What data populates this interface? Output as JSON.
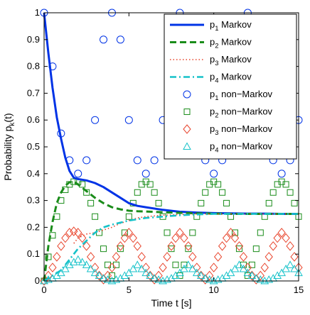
{
  "chart_data": {
    "type": "line",
    "xlabel": "Time t [s]",
    "ylabel_main": "Probability p",
    "ylabel_sub": "k",
    "ylabel_tail": "(t)",
    "xlim": [
      0,
      15
    ],
    "ylim": [
      0,
      1
    ],
    "xticks": [
      0,
      5,
      10,
      15
    ],
    "xtick_labels": [
      "0",
      "5",
      "10",
      "15"
    ],
    "yticks": [
      0,
      0.1,
      0.2,
      0.3,
      0.4,
      0.5,
      0.6,
      0.7,
      0.8,
      0.9,
      1
    ],
    "ytick_labels": [
      "0",
      "0.1",
      "0.2",
      "0.3",
      "0.4",
      "0.5",
      "0.6",
      "0.7",
      "0.8",
      "0.9",
      "1"
    ],
    "grid": false,
    "legend_position": "top-right",
    "legend": [
      {
        "pre": "p",
        "sub": "1",
        "post": " Markov",
        "color": "#0033e6",
        "style": "solid"
      },
      {
        "pre": "p",
        "sub": "2",
        "post": " Markov",
        "color": "#1a8c1a",
        "style": "dashed"
      },
      {
        "pre": "p",
        "sub": "3",
        "post": " Markov",
        "color": "#e8442c",
        "style": "dotted"
      },
      {
        "pre": "p",
        "sub": "4",
        "post": " Markov",
        "color": "#16c2c9",
        "style": "dashdot"
      },
      {
        "pre": "p",
        "sub": "1",
        "post": " non−Markov",
        "color": "#0033e6",
        "style": "circle"
      },
      {
        "pre": "p",
        "sub": "2",
        "post": " non−Markov",
        "color": "#1a8c1a",
        "style": "square"
      },
      {
        "pre": "p",
        "sub": "3",
        "post": " non−Markov",
        "color": "#e8442c",
        "style": "diamond"
      },
      {
        "pre": "p",
        "sub": "4",
        "post": " non−Markov",
        "color": "#16c2c9",
        "style": "triangle"
      }
    ],
    "series": [
      {
        "x": [
          0,
          0.25,
          0.5,
          0.75,
          1,
          1.25,
          1.5,
          1.75,
          2,
          2.5,
          3,
          3.5,
          4,
          4.5,
          5,
          5.5,
          6,
          7,
          8,
          9,
          10,
          11,
          12,
          13,
          14,
          15
        ],
        "y": [
          1,
          0.85,
          0.72,
          0.61,
          0.53,
          0.46,
          0.41,
          0.385,
          0.38,
          0.375,
          0.365,
          0.35,
          0.33,
          0.31,
          0.29,
          0.28,
          0.275,
          0.265,
          0.258,
          0.255,
          0.253,
          0.252,
          0.251,
          0.251,
          0.25,
          0.25
        ]
      },
      {
        "x": [
          0,
          0.25,
          0.5,
          0.75,
          1,
          1.25,
          1.5,
          1.75,
          2,
          2.5,
          3,
          3.5,
          4,
          4.5,
          5,
          5.5,
          6,
          7,
          8,
          9,
          10,
          11,
          12,
          13,
          14,
          15
        ],
        "y": [
          0,
          0.13,
          0.22,
          0.29,
          0.33,
          0.355,
          0.368,
          0.37,
          0.36,
          0.335,
          0.31,
          0.29,
          0.275,
          0.267,
          0.262,
          0.26,
          0.259,
          0.256,
          0.254,
          0.252,
          0.251,
          0.25,
          0.25,
          0.25,
          0.25,
          0.25
        ]
      },
      {
        "x": [
          1.75,
          2,
          2.5,
          3,
          3.5,
          4,
          4.5,
          5,
          5.5,
          6,
          7,
          8,
          9,
          10,
          11,
          12,
          13,
          14,
          15
        ],
        "y": [
          0.14,
          0.16,
          0.175,
          0.18,
          0.19,
          0.2,
          0.215,
          0.225,
          0.235,
          0.24,
          0.245,
          0.248,
          0.25,
          0.25,
          0.25,
          0.25,
          0.25,
          0.25,
          0.25
        ]
      },
      {
        "x": [
          0,
          1,
          2,
          3,
          3.5,
          4,
          5,
          6,
          7,
          8,
          9,
          10,
          11,
          12,
          13,
          14,
          15
        ],
        "y": [
          0,
          0.04,
          0.12,
          0.18,
          0.2,
          0.21,
          0.225,
          0.235,
          0.24,
          0.245,
          0.248,
          0.25,
          0.25,
          0.25,
          0.25,
          0.25,
          0.25
        ]
      }
    ],
    "scatter": [
      {
        "x": [
          0,
          0.5,
          1,
          1.5,
          2,
          2.5,
          3,
          3.5,
          4,
          4.5,
          5,
          5.5,
          6,
          6.5,
          7,
          7.5,
          8,
          8.5,
          9,
          9.5,
          10,
          10.5,
          11,
          11.5,
          12,
          12.5,
          13,
          13.5,
          14,
          14.5,
          15
        ],
        "y": [
          1,
          0.8,
          0.55,
          0.45,
          0.4,
          0.45,
          0.6,
          0.9,
          1,
          0.9,
          0.6,
          0.45,
          0.4,
          0.45,
          0.6,
          0.9,
          1,
          0.9,
          0.6,
          0.45,
          0.4,
          0.45,
          0.6,
          0.9,
          1,
          0.9,
          0.6,
          0.45,
          0.4,
          0.45,
          0.6
        ]
      },
      {
        "x": [
          0,
          0.25,
          0.5,
          0.75,
          1,
          1.25,
          1.5,
          1.75,
          2,
          2.25,
          2.5,
          2.75,
          3,
          3.25,
          3.5,
          3.75,
          4,
          4.25,
          4.5,
          4.75,
          5,
          5.25,
          5.5,
          5.75,
          6,
          6.25,
          6.5,
          6.75,
          7,
          7.25,
          7.5,
          7.75,
          8,
          8.25,
          8.5,
          8.75,
          9,
          9.25,
          9.5,
          9.75,
          10,
          10.25,
          10.5,
          10.75,
          11,
          11.25,
          11.5,
          11.75,
          12,
          12.25,
          12.5,
          12.75,
          13,
          13.25,
          13.5,
          13.75,
          14,
          14.25,
          14.5,
          14.75,
          15
        ],
        "y": [
          0,
          0.09,
          0.17,
          0.24,
          0.3,
          0.34,
          0.36,
          0.37,
          0.37,
          0.36,
          0.33,
          0.29,
          0.24,
          0.18,
          0.12,
          0.06,
          0.02,
          0.06,
          0.12,
          0.18,
          0.24,
          0.29,
          0.33,
          0.36,
          0.37,
          0.36,
          0.33,
          0.29,
          0.24,
          0.18,
          0.12,
          0.06,
          0.02,
          0.06,
          0.12,
          0.18,
          0.24,
          0.29,
          0.33,
          0.36,
          0.37,
          0.36,
          0.33,
          0.29,
          0.24,
          0.18,
          0.12,
          0.06,
          0.02,
          0.06,
          0.12,
          0.18,
          0.24,
          0.29,
          0.33,
          0.36,
          0.37,
          0.36,
          0.33,
          0.29,
          0.24
        ]
      },
      {
        "x": [
          0,
          0.25,
          0.5,
          0.75,
          1,
          1.25,
          1.5,
          1.75,
          2,
          2.25,
          2.5,
          2.75,
          3,
          3.25,
          3.5,
          3.75,
          4,
          4.25,
          4.5,
          4.75,
          5,
          5.25,
          5.5,
          5.75,
          6,
          6.25,
          6.5,
          6.75,
          7,
          7.25,
          7.5,
          7.75,
          8,
          8.25,
          8.5,
          8.75,
          9,
          9.25,
          9.5,
          9.75,
          10,
          10.25,
          10.5,
          10.75,
          11,
          11.25,
          11.5,
          11.75,
          12,
          12.25,
          12.5,
          12.75,
          13,
          13.25,
          13.5,
          13.75,
          14,
          14.25,
          14.5,
          14.75,
          15
        ],
        "y": [
          0,
          0.02,
          0.05,
          0.09,
          0.13,
          0.16,
          0.18,
          0.185,
          0.18,
          0.16,
          0.13,
          0.09,
          0.05,
          0.02,
          0.005,
          0.02,
          0.05,
          0.09,
          0.13,
          0.16,
          0.18,
          0.16,
          0.13,
          0.09,
          0.05,
          0.02,
          0.005,
          0.02,
          0.05,
          0.09,
          0.13,
          0.16,
          0.18,
          0.16,
          0.13,
          0.09,
          0.05,
          0.02,
          0.005,
          0.02,
          0.05,
          0.09,
          0.13,
          0.16,
          0.18,
          0.16,
          0.13,
          0.09,
          0.05,
          0.02,
          0.005,
          0.02,
          0.05,
          0.09,
          0.13,
          0.16,
          0.18,
          0.16,
          0.13,
          0.09,
          0.05
        ]
      },
      {
        "x": [
          0,
          0.25,
          0.5,
          0.75,
          1,
          1.25,
          1.5,
          1.75,
          2,
          2.25,
          2.5,
          2.75,
          3,
          3.25,
          3.5,
          3.75,
          4,
          4.25,
          4.5,
          4.75,
          5,
          5.25,
          5.5,
          5.75,
          6,
          6.25,
          6.5,
          6.75,
          7,
          7.25,
          7.5,
          7.75,
          8,
          8.25,
          8.5,
          8.75,
          9,
          9.25,
          9.5,
          9.75,
          10,
          10.25,
          10.5,
          10.75,
          11,
          11.25,
          11.5,
          11.75,
          12,
          12.25,
          12.5,
          12.75,
          13,
          13.25,
          13.5,
          13.75,
          14,
          14.25,
          14.5,
          14.75,
          15
        ],
        "y": [
          0,
          0.005,
          0.01,
          0.02,
          0.03,
          0.045,
          0.06,
          0.07,
          0.08,
          0.07,
          0.06,
          0.045,
          0.03,
          0.02,
          0.01,
          0.005,
          0,
          0.005,
          0.01,
          0.02,
          0.03,
          0.045,
          0.06,
          0.045,
          0.03,
          0.02,
          0.01,
          0.005,
          0,
          0.005,
          0.01,
          0.02,
          0.03,
          0.045,
          0.06,
          0.045,
          0.03,
          0.02,
          0.01,
          0.005,
          0,
          0.005,
          0.01,
          0.02,
          0.03,
          0.045,
          0.06,
          0.045,
          0.03,
          0.02,
          0.01,
          0.005,
          0,
          0.005,
          0.01,
          0.02,
          0.03,
          0.045,
          0.06,
          0.045,
          0.03
        ]
      }
    ]
  }
}
